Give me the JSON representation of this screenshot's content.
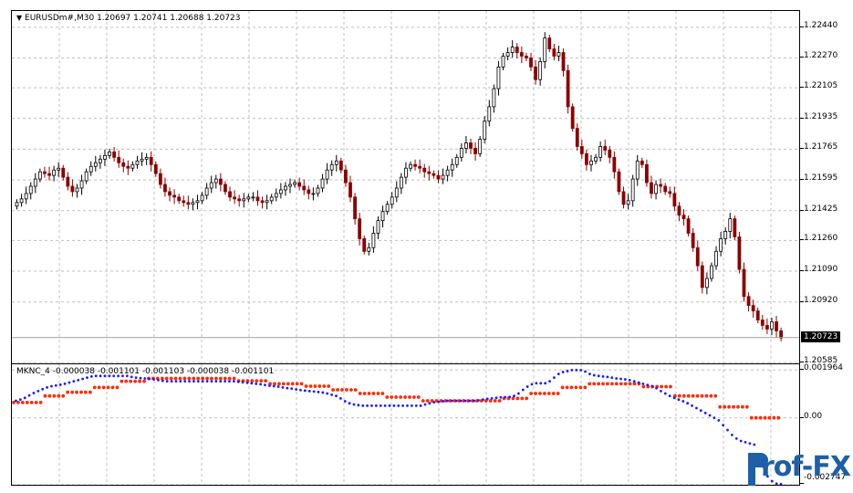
{
  "price_header": {
    "arrow": "▼",
    "symbol": "EURUSDm#,M30",
    "ohlc": "1.20697 1.20741 1.20688 1.20723"
  },
  "price_axis": {
    "ticks": [
      "1.22440",
      "1.22270",
      "1.22105",
      "1.21935",
      "1.21765",
      "1.21595",
      "1.21425",
      "1.21260",
      "1.21090",
      "1.20920",
      "1.20585"
    ],
    "current_price": "1.20723"
  },
  "indicator_header": {
    "label": "MKNC_4 -0.000038 -0.001101 -0.001103 -0.000038 -0.001101"
  },
  "indicator_axis": {
    "ticks": [
      "0.001964",
      "0.00",
      "-0.002747"
    ]
  },
  "watermark": {
    "text": "rof-FX",
    "mark": "P"
  },
  "colors": {
    "grid": "#c0c0c0",
    "bull": "#000000",
    "bear": "#8b0000",
    "red_dots": "#ff2a00",
    "blue_dots": "#1a1aff",
    "logo": "#1f5fa8"
  },
  "chart_data": [
    {
      "type": "candlestick",
      "title": "EURUSDm#,M30",
      "ylim": [
        1.2058,
        1.2253
      ],
      "closes": [
        1.2147,
        1.2149,
        1.2152,
        1.2156,
        1.216,
        1.2164,
        1.2163,
        1.2162,
        1.2165,
        1.2166,
        1.2161,
        1.2156,
        1.2153,
        1.2155,
        1.2159,
        1.2164,
        1.2167,
        1.2169,
        1.2171,
        1.2173,
        1.2175,
        1.2172,
        1.2169,
        1.2167,
        1.2166,
        1.2168,
        1.217,
        1.2171,
        1.2172,
        1.2168,
        1.2163,
        1.2157,
        1.2153,
        1.2151,
        1.215,
        1.2148,
        1.2147,
        1.2146,
        1.2147,
        1.2148,
        1.2151,
        1.2155,
        1.2158,
        1.216,
        1.2157,
        1.2153,
        1.215,
        1.2149,
        1.2148,
        1.2149,
        1.215,
        1.215,
        1.2148,
        1.2147,
        1.2148,
        1.215,
        1.2152,
        1.2154,
        1.2156,
        1.2157,
        1.2158,
        1.2156,
        1.2154,
        1.2152,
        1.2152,
        1.2155,
        1.216,
        1.2165,
        1.2168,
        1.217,
        1.2165,
        1.2158,
        1.215,
        1.2138,
        1.2127,
        1.212,
        1.2122,
        1.213,
        1.2137,
        1.2142,
        1.2146,
        1.215,
        1.2155,
        1.2161,
        1.2166,
        1.2168,
        1.2167,
        1.2166,
        1.2164,
        1.2163,
        1.2162,
        1.216,
        1.2162,
        1.2165,
        1.2168,
        1.2172,
        1.2177,
        1.218,
        1.2177,
        1.2174,
        1.2182,
        1.2192,
        1.22,
        1.221,
        1.2222,
        1.2228,
        1.223,
        1.2233,
        1.223,
        1.2228,
        1.2227,
        1.2222,
        1.2215,
        1.2225,
        1.2238,
        1.2232,
        1.2228,
        1.223,
        1.222,
        1.22,
        1.2188,
        1.2178,
        1.2174,
        1.2168,
        1.217,
        1.2172,
        1.2178,
        1.2176,
        1.2172,
        1.2164,
        1.2153,
        1.2146,
        1.2148,
        1.216,
        1.217,
        1.2168,
        1.2158,
        1.2152,
        1.2157,
        1.2156,
        1.2153,
        1.2152,
        1.2145,
        1.214,
        1.2138,
        1.213,
        1.2122,
        1.2112,
        1.21,
        1.2105,
        1.2112,
        1.212,
        1.2127,
        1.2131,
        1.2138,
        1.2128,
        1.211,
        1.2095,
        1.209,
        1.2087,
        1.2082,
        1.2079,
        1.2077,
        1.2081,
        1.2076,
        1.2072
      ],
      "current_price": 1.20723
    },
    {
      "type": "line",
      "title": "MKNC_4",
      "ylim": [
        -0.002747,
        0.0022
      ],
      "series": [
        {
          "name": "",
          "color": "red",
          "values": [
            0.00063,
            0.00063,
            0.00063,
            0.00063,
            0.00063,
            0.00063,
            0.00063,
            0.0009,
            0.0009,
            0.0009,
            0.0009,
            0.0009,
            0.00105,
            0.00105,
            0.00105,
            0.00105,
            0.00105,
            0.00105,
            0.00125,
            0.00125,
            0.00125,
            0.00125,
            0.00125,
            0.00125,
            0.0015,
            0.0015,
            0.0015,
            0.0015,
            0.0015,
            0.0015,
            0.00162,
            0.00162,
            0.00162,
            0.00162,
            0.00162,
            0.00162,
            0.00162,
            0.00162,
            0.00162,
            0.00162,
            0.00162,
            0.00162,
            0.00162,
            0.00162,
            0.00162,
            0.00162,
            0.00162,
            0.00162,
            0.00162,
            0.00162,
            0.00152,
            0.00152,
            0.00152,
            0.00152,
            0.00152,
            0.00152,
            0.00152,
            0.0014,
            0.0014,
            0.0014,
            0.0014,
            0.0014,
            0.0014,
            0.0014,
            0.0014,
            0.0013,
            0.0013,
            0.0013,
            0.0013,
            0.0013,
            0.0013,
            0.00115,
            0.00115,
            0.00115,
            0.00115,
            0.00115,
            0.00115,
            0.001,
            0.001,
            0.001,
            0.001,
            0.001,
            0.001,
            0.00085,
            0.00085,
            0.00085,
            0.00085,
            0.00085,
            0.00085,
            0.00085,
            0.00085,
            0.0007,
            0.0007,
            0.0007,
            0.0007,
            0.0007,
            0.0007,
            0.0007,
            0.0007,
            0.0007,
            0.0007,
            0.0007,
            0.0007,
            0.0007,
            0.0007,
            0.0007,
            0.0007,
            0.0007,
            0.0007,
            0.0008,
            0.0008,
            0.0008,
            0.0008,
            0.0008,
            0.0008,
            0.001,
            0.001,
            0.001,
            0.001,
            0.001,
            0.001,
            0.001,
            0.00125,
            0.00125,
            0.00125,
            0.00125,
            0.00125,
            0.00125,
            0.0014,
            0.0014,
            0.0014,
            0.0014,
            0.0014,
            0.0014,
            0.0014,
            0.0014,
            0.0014,
            0.0014,
            0.0014,
            0.0014,
            0.00128,
            0.00128,
            0.00128,
            0.00128,
            0.00128,
            0.00128,
            0.00128,
            0.0009,
            0.0009,
            0.0009,
            0.0009,
            0.0009,
            0.0009,
            0.0009,
            0.0009,
            0.0009,
            0.0009,
            0.00045,
            0.00045,
            0.00045,
            0.00045,
            0.00045,
            0.00045,
            0.00045,
            0.0,
            0.0,
            0.0,
            0.0,
            0.0,
            0.0,
            0.0
          ]
        },
        {
          "name": "",
          "color": "blue",
          "values": [
            0.0007,
            0.00075,
            0.00082,
            0.00092,
            0.00102,
            0.0011,
            0.00118,
            0.00125,
            0.0013,
            0.00133,
            0.00136,
            0.0014,
            0.00145,
            0.0015,
            0.00155,
            0.0016,
            0.00165,
            0.0017,
            0.00172,
            0.00172,
            0.00172,
            0.00172,
            0.00172,
            0.00172,
            0.00172,
            0.00172,
            0.00168,
            0.00165,
            0.00163,
            0.00162,
            0.0016,
            0.00158,
            0.00155,
            0.00152,
            0.0015,
            0.0015,
            0.0015,
            0.0015,
            0.0015,
            0.0015,
            0.0015,
            0.0015,
            0.0015,
            0.0015,
            0.0015,
            0.0015,
            0.0015,
            0.0015,
            0.0015,
            0.0015,
            0.00148,
            0.00146,
            0.00144,
            0.00142,
            0.0014,
            0.00138,
            0.00135,
            0.00132,
            0.0013,
            0.00128,
            0.00125,
            0.00122,
            0.0012,
            0.00117,
            0.00114,
            0.00112,
            0.0011,
            0.00108,
            0.00106,
            0.00104,
            0.001,
            0.00095,
            0.0009,
            0.0008,
            0.00068,
            0.0006,
            0.00055,
            0.00052,
            0.0005,
            0.0005,
            0.0005,
            0.0005,
            0.0005,
            0.0005,
            0.0005,
            0.0005,
            0.0005,
            0.0005,
            0.0005,
            0.0005,
            0.0005,
            0.0005,
            0.00055,
            0.0006,
            0.00064,
            0.00066,
            0.00068,
            0.0007,
            0.0007,
            0.0007,
            0.0007,
            0.0007,
            0.0007,
            0.0007,
            0.00072,
            0.00075,
            0.00078,
            0.0008,
            0.00082,
            0.00084,
            0.00085,
            0.00086,
            0.0009,
            0.001,
            0.00115,
            0.00128,
            0.00138,
            0.00142,
            0.00142,
            0.00142,
            0.0015,
            0.00165,
            0.0018,
            0.00188,
            0.00192,
            0.00196,
            0.00196,
            0.00196,
            0.0019,
            0.0018,
            0.00175,
            0.00172,
            0.0017,
            0.00168,
            0.00165,
            0.00162,
            0.0016,
            0.00158,
            0.00155,
            0.0015,
            0.00145,
            0.0014,
            0.00135,
            0.0013,
            0.00122,
            0.0011,
            0.001,
            0.0009,
            0.00082,
            0.00075,
            0.00068,
            0.0006,
            0.0005,
            0.0004,
            0.0003,
            0.0002,
            0.0001,
            0.0,
            -0.0001,
            -0.0003,
            -0.0005,
            -0.0007,
            -0.00085,
            -0.00095,
            -0.001,
            -0.00105,
            -0.0011,
            -0.0015,
            -0.002,
            -0.0024,
            -0.0026,
            -0.0027,
            -0.00272
          ]
        }
      ]
    }
  ]
}
